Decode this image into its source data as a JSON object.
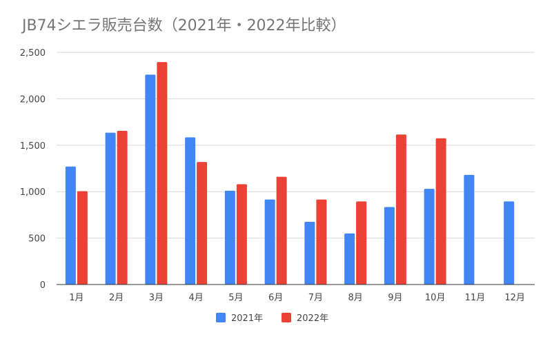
{
  "chart_data": {
    "type": "bar",
    "title": "JB74シエラ販売台数（2021年・2022年比較）",
    "xlabel": "",
    "ylabel": "",
    "categories": [
      "1月",
      "2月",
      "3月",
      "4月",
      "5月",
      "6月",
      "7月",
      "8月",
      "9月",
      "10月",
      "11月",
      "12月"
    ],
    "series": [
      {
        "name": "2021年",
        "color": "#4285F4",
        "values": [
          1270,
          1635,
          2260,
          1585,
          1010,
          915,
          675,
          550,
          835,
          1030,
          1180,
          895
        ]
      },
      {
        "name": "2022年",
        "color": "#EA4335",
        "values": [
          1005,
          1655,
          2395,
          1320,
          1080,
          1160,
          915,
          895,
          1615,
          1575,
          null,
          null
        ]
      }
    ],
    "ylim": [
      0,
      2500
    ],
    "yticks": [
      0,
      500,
      1000,
      1500,
      2000,
      2500
    ],
    "ytick_labels": [
      "0",
      "500",
      "1,000",
      "1,500",
      "2,000",
      "2,500"
    ],
    "grid": true,
    "legend_position": "bottom"
  }
}
